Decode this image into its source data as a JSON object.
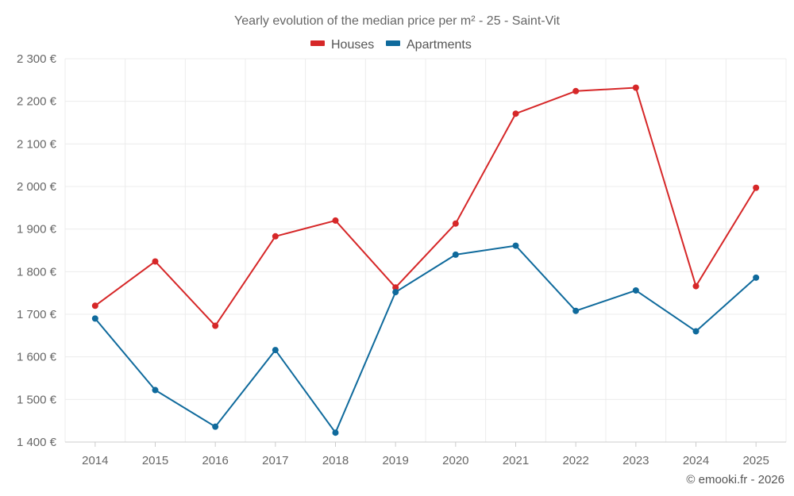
{
  "chart_data": {
    "type": "line",
    "title": "Yearly evolution of the median price per m² - 25 - Saint-Vit",
    "xlabel": "",
    "ylabel": "",
    "categories": [
      "2014",
      "2015",
      "2016",
      "2017",
      "2018",
      "2019",
      "2020",
      "2021",
      "2022",
      "2023",
      "2024",
      "2025"
    ],
    "ylim": [
      1400,
      2300
    ],
    "yticks": [
      1400,
      1500,
      1600,
      1700,
      1800,
      1900,
      2000,
      2100,
      2200,
      2300
    ],
    "ytick_labels": [
      "1 400 €",
      "1 500 €",
      "1 600 €",
      "1 700 €",
      "1 800 €",
      "1 900 €",
      "2 000 €",
      "2 100 €",
      "2 200 €",
      "2 300 €"
    ],
    "grid": true,
    "legend_position": "top-center",
    "series": [
      {
        "name": "Houses",
        "color": "#d62728",
        "values": [
          1720,
          1824,
          1673,
          1883,
          1920,
          1763,
          1913,
          2171,
          2224,
          2232,
          1766,
          1997
        ]
      },
      {
        "name": "Apartments",
        "color": "#0f6a9c",
        "values": [
          1690,
          1522,
          1436,
          1616,
          1422,
          1752,
          1840,
          1861,
          1708,
          1756,
          1660,
          1786
        ]
      }
    ],
    "credit": "© emooki.fr - 2026"
  }
}
